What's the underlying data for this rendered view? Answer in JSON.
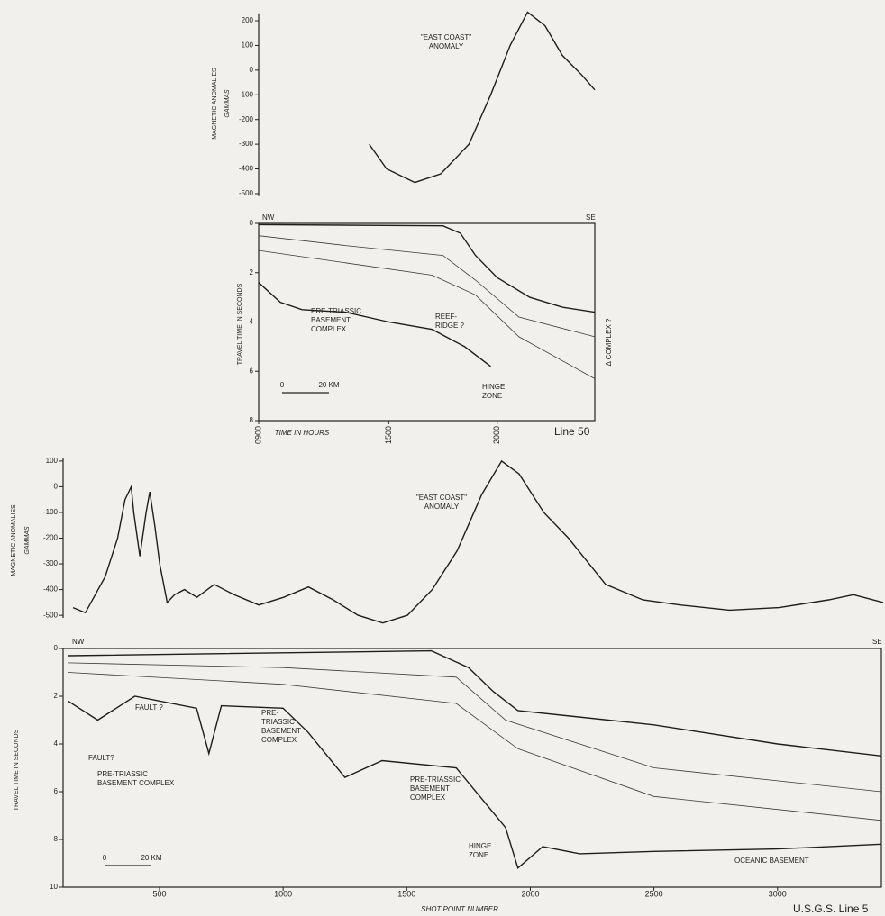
{
  "chart_data": [
    {
      "type": "line",
      "ylabel": "MAGNETIC ANOMALIES",
      "yunit": "GAMMAS",
      "x": [
        14.1,
        14.9,
        16.2,
        17.4,
        18.7,
        19.7,
        20.6,
        21.4,
        22.2,
        23.0,
        23.9,
        24.5
      ],
      "values": [
        -300,
        -400,
        -455,
        -420,
        -300,
        -100,
        100,
        235,
        180,
        60,
        -20,
        -80
      ],
      "color": "#1e1e1e",
      "xlim": [
        9,
        24.5
      ],
      "ylim": [
        -510,
        230
      ],
      "yticks": [
        200,
        100,
        0,
        -100,
        -200,
        -300,
        -400,
        -500
      ],
      "annotations": [
        [
          "\"EAST COAST\"",
          "ANOMALY"
        ]
      ]
    },
    {
      "type": "line",
      "ylabel": "TRAVEL TIME IN SECONDS",
      "xlabel": "TIME IN HOURS",
      "title": "Line 50",
      "y_inverted": true,
      "xlim": [
        9,
        24.5
      ],
      "ylim": [
        0,
        8
      ],
      "yticks": [
        0,
        2,
        4,
        6,
        8
      ],
      "xticks": [
        {
          "value": 9,
          "label": "0900"
        },
        {
          "value": 15,
          "label": "1500"
        },
        {
          "value": 20,
          "label": "2000"
        }
      ],
      "series": [
        {
          "color": "#1e1e1e",
          "x": [
            9,
            17.5,
            18.3,
            19,
            20,
            21.5,
            23,
            24.5
          ],
          "values": [
            0.05,
            0.1,
            0.4,
            1.3,
            2.2,
            3.0,
            3.4,
            3.6
          ]
        },
        {
          "color": "#3a3a3a",
          "x": [
            9,
            13,
            17.5,
            19,
            21,
            24.5
          ],
          "values": [
            0.5,
            0.9,
            1.3,
            2.3,
            3.8,
            4.6
          ]
        },
        {
          "color": "#3a3a3a",
          "x": [
            9,
            13,
            17,
            19,
            21,
            24.5
          ],
          "values": [
            1.1,
            1.6,
            2.1,
            2.9,
            4.6,
            6.3
          ]
        },
        {
          "color": "#1e1e1e",
          "x": [
            9,
            10,
            11,
            13,
            15,
            17,
            18.5,
            19.7
          ],
          "values": [
            2.4,
            3.2,
            3.5,
            3.6,
            4.0,
            4.3,
            5.0,
            5.8
          ]
        }
      ],
      "annotations": [
        [
          "NW"
        ],
        [
          "SE"
        ],
        [
          "PRE-TRIASSIC",
          "BASEMENT",
          "COMPLEX"
        ],
        [
          "REEF-",
          "RIDGE ?"
        ],
        [
          "HINGE",
          "ZONE"
        ],
        [
          "Δ COMPLEX ?"
        ],
        [
          "0"
        ],
        [
          "20 KM"
        ]
      ]
    },
    {
      "type": "line",
      "ylabel": "MAGNETIC ANOMALIES",
      "yunit": "GAMMAS",
      "x": [
        150,
        200,
        280,
        330,
        360,
        385,
        395,
        420,
        445,
        460,
        480,
        500,
        530,
        560,
        600,
        650,
        720,
        800,
        900,
        1000,
        1100,
        1200,
        1300,
        1400,
        1500,
        1600,
        1700,
        1800,
        1880,
        1950,
        2050,
        2150,
        2300,
        2450,
        2600,
        2800,
        3000,
        3200,
        3300,
        3420
      ],
      "values": [
        -470,
        -490,
        -350,
        -200,
        -50,
        0,
        -100,
        -270,
        -100,
        -20,
        -150,
        -300,
        -450,
        -420,
        -400,
        -430,
        -380,
        -420,
        -460,
        -430,
        -390,
        -440,
        -500,
        -530,
        -500,
        -400,
        -250,
        -30,
        100,
        50,
        -100,
        -200,
        -380,
        -440,
        -460,
        -480,
        -470,
        -440,
        -420,
        -450
      ],
      "color": "#1e1e1e",
      "xlim": [
        110,
        3420
      ],
      "ylim": [
        -510,
        110
      ],
      "yticks": [
        100,
        0,
        -100,
        -200,
        -300,
        -400,
        -500
      ],
      "annotations": [
        [
          "\"EAST COAST\"",
          "ANOMALY"
        ]
      ]
    },
    {
      "type": "line",
      "ylabel": "TRAVEL TIME IN SECONDS",
      "xlabel": "SHOT POINT NUMBER",
      "title": "U.S.G.S. Line 5",
      "y_inverted": true,
      "xlim": [
        110,
        3420
      ],
      "ylim": [
        0,
        10
      ],
      "yticks": [
        0,
        2,
        4,
        6,
        8,
        10
      ],
      "xticks": [
        500,
        1000,
        1500,
        2000,
        2500,
        3000
      ],
      "series": [
        {
          "color": "#1e1e1e",
          "x": [
            130,
            1600,
            1750,
            1850,
            1950,
            2500,
            3000,
            3420
          ],
          "values": [
            0.3,
            0.1,
            0.8,
            1.8,
            2.6,
            3.2,
            4.0,
            4.5
          ]
        },
        {
          "color": "#3a3a3a",
          "x": [
            130,
            1000,
            1700,
            1900,
            2500,
            3420
          ],
          "values": [
            0.6,
            0.8,
            1.2,
            3.0,
            5.0,
            6.0
          ]
        },
        {
          "color": "#3a3a3a",
          "x": [
            130,
            1000,
            1700,
            1950,
            2500,
            3420
          ],
          "values": [
            1.0,
            1.5,
            2.3,
            4.2,
            6.2,
            7.2
          ]
        },
        {
          "color": "#1e1e1e",
          "x": [
            130,
            250,
            400,
            650,
            700,
            750,
            1000,
            1100,
            1250,
            1400,
            1700,
            1900,
            1950,
            2050,
            2200,
            2500,
            3000,
            3420
          ],
          "values": [
            2.2,
            3.0,
            2.0,
            2.5,
            4.4,
            2.4,
            2.5,
            3.5,
            5.4,
            4.7,
            5.0,
            7.5,
            9.2,
            8.3,
            8.6,
            8.5,
            8.4,
            8.2
          ]
        }
      ],
      "annotations": [
        [
          "NW"
        ],
        [
          "SE"
        ],
        [
          "FAULT ?"
        ],
        [
          "FAULT?"
        ],
        [
          "PRE-TRIASSIC",
          "BASEMENT COMPLEX"
        ],
        [
          "PRE-",
          "TRIASSIC",
          "BASEMENT",
          "COMPLEX"
        ],
        [
          "PRE-TRIASSIC",
          "BASEMENT",
          "COMPLEX"
        ],
        [
          "HINGE",
          "ZONE"
        ],
        [
          "OCEANIC BASEMENT"
        ],
        [
          "0"
        ],
        [
          "20 KM"
        ]
      ]
    }
  ]
}
